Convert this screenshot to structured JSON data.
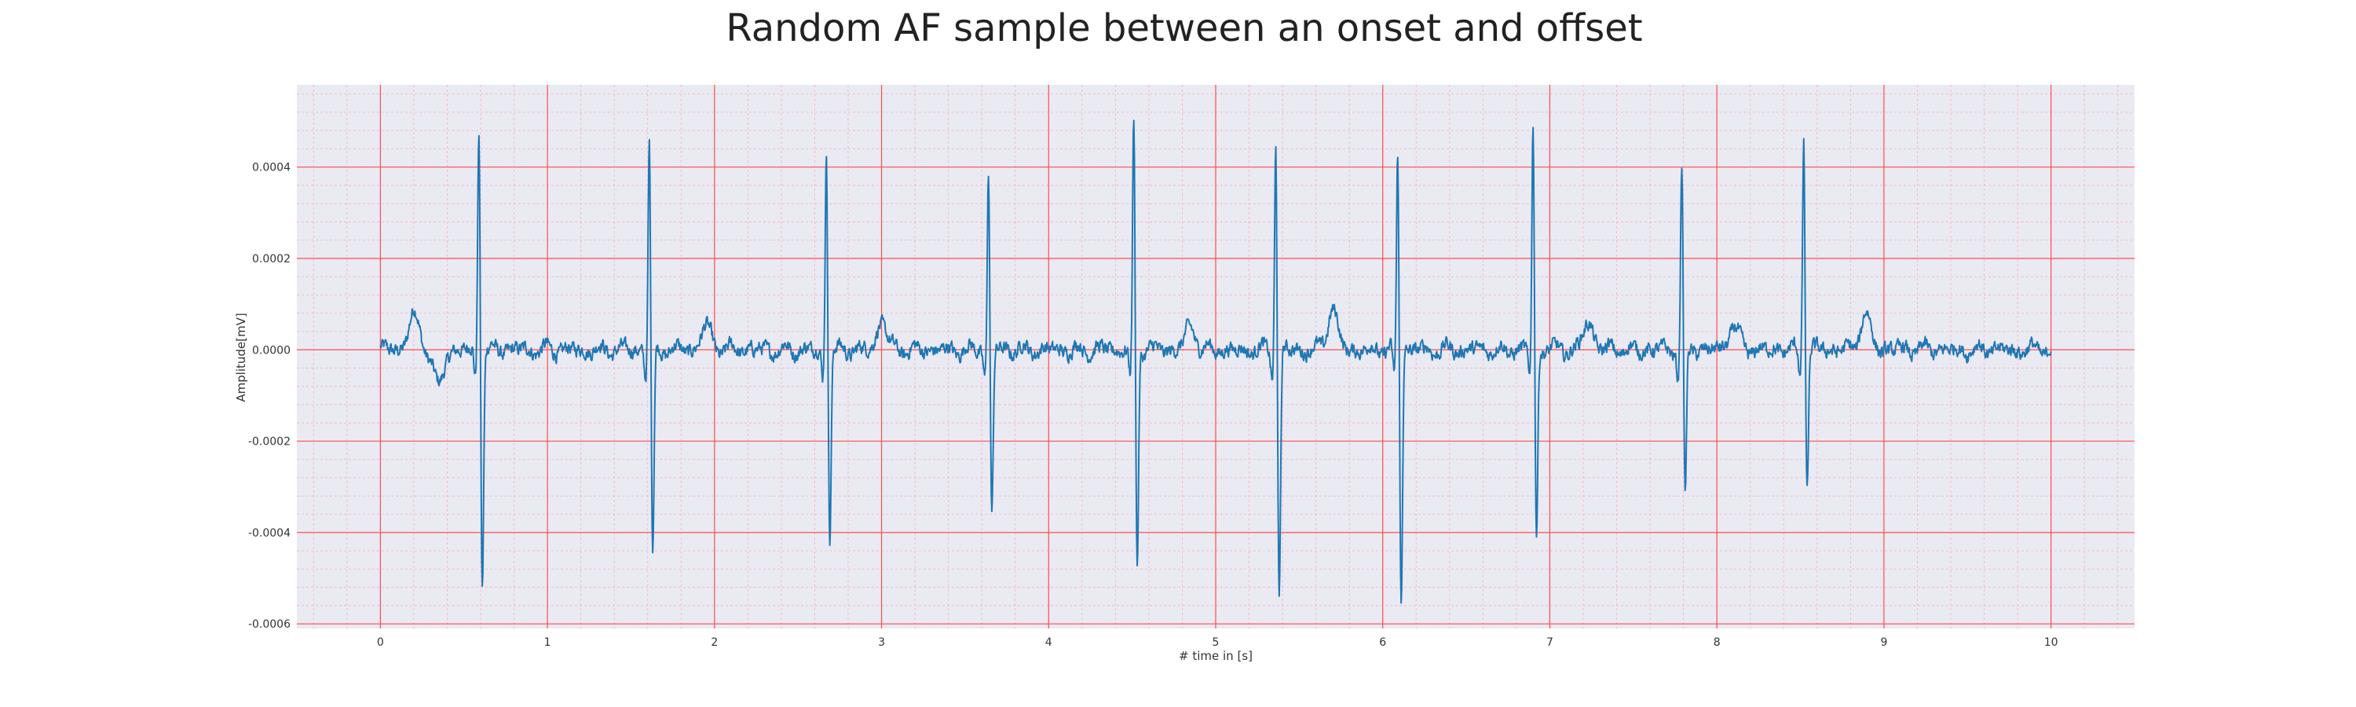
{
  "chart_data": {
    "type": "line",
    "title": "Random AF sample between an onset and offset",
    "xlabel": "# time in [s]",
    "ylabel": "Amplitude[mV]",
    "xlim": [
      -0.5,
      10.5
    ],
    "ylim": [
      -0.00061,
      0.00058
    ],
    "xticks": [
      0,
      1,
      2,
      3,
      4,
      5,
      6,
      7,
      8,
      9,
      10
    ],
    "xtick_labels": [
      "0",
      "1",
      "2",
      "3",
      "4",
      "5",
      "6",
      "7",
      "8",
      "9",
      "10"
    ],
    "yticks": [
      -0.0006,
      -0.0004,
      -0.0002,
      0.0,
      0.0002,
      0.0004
    ],
    "ytick_labels": [
      "-0.0006",
      "-0.0004",
      "-0.0002",
      "0.0000",
      "0.0002",
      "0.0004"
    ],
    "grid": {
      "major": true,
      "minor": true,
      "color": "red"
    },
    "colors": {
      "background": "#eaeaf2",
      "line": "#1f77b4",
      "grid_major": "#ff4d4d",
      "grid_minor": "#f5a0b8"
    },
    "series": [
      {
        "sample_rate_hz": 300,
        "duration_s": 10,
        "r_peaks": [
          {
            "t": 0.59,
            "peak": 0.00051,
            "trough": -0.00052
          },
          {
            "t": 1.61,
            "peak": 0.00047,
            "trough": -0.00045
          },
          {
            "t": 2.67,
            "peak": 0.00045,
            "trough": -0.00042
          },
          {
            "t": 3.64,
            "peak": 0.0004,
            "trough": -0.00037
          },
          {
            "t": 4.51,
            "peak": 0.00052,
            "trough": -0.00048
          },
          {
            "t": 5.36,
            "peak": 0.00047,
            "trough": -0.00056
          },
          {
            "t": 6.09,
            "peak": 0.00045,
            "trough": -0.00056
          },
          {
            "t": 6.9,
            "peak": 0.00051,
            "trough": -0.00041
          },
          {
            "t": 7.79,
            "peak": 0.00042,
            "trough": -0.00033
          },
          {
            "t": 8.52,
            "peak": 0.00048,
            "trough": -0.00031
          }
        ],
        "t_waves": [
          {
            "t": 0.2,
            "amp": 8e-05
          },
          {
            "t": 1.95,
            "amp": 5e-05
          },
          {
            "t": 3.0,
            "amp": 6e-05
          },
          {
            "t": 4.85,
            "amp": 5e-05
          },
          {
            "t": 5.7,
            "amp": 9e-05
          },
          {
            "t": 7.23,
            "amp": 6e-05
          },
          {
            "t": 8.1,
            "amp": 5e-05
          },
          {
            "t": 8.89,
            "amp": 8e-05
          }
        ],
        "baseline_dip": {
          "t": 0.35,
          "amp": -8e-05
        }
      }
    ]
  }
}
